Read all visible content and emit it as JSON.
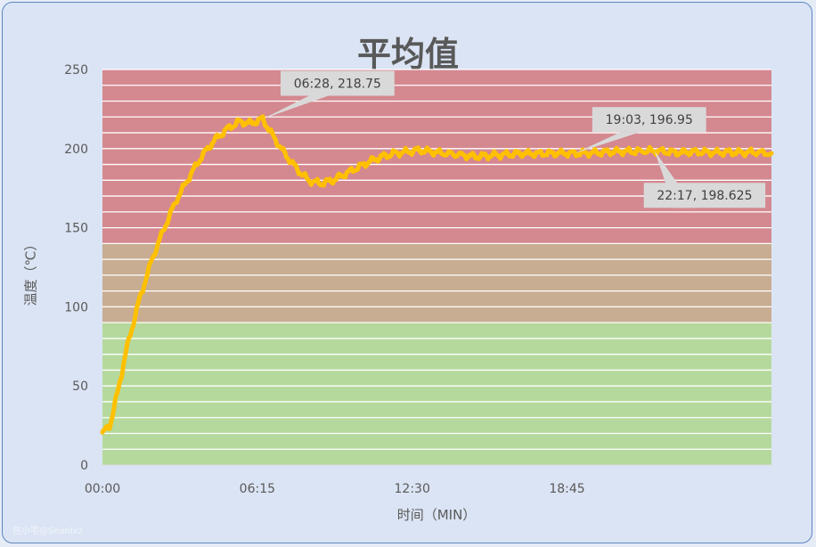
{
  "chart_data": {
    "type": "line",
    "title": "平均值",
    "xlabel": "时间（MIN）",
    "ylabel": "温度（℃）",
    "ylim": [
      0,
      250
    ],
    "xlim": [
      0,
      27
    ],
    "y_ticks": [
      "0",
      "50",
      "100",
      "150",
      "200",
      "250"
    ],
    "x_ticks": [
      {
        "label": "00:00",
        "value": 0
      },
      {
        "label": "06:15",
        "value": 6.25
      },
      {
        "label": "12:30",
        "value": 12.5
      },
      {
        "label": "18:45",
        "value": 18.75
      }
    ],
    "background_bands": [
      {
        "from": 0,
        "to": 90,
        "color": "#b5d99c"
      },
      {
        "from": 90,
        "to": 140,
        "color": "#c8ad92"
      },
      {
        "from": 140,
        "to": 250,
        "color": "#d4888f"
      }
    ],
    "grid": true,
    "series": [
      {
        "color": "#ffc000",
        "x": [
          0,
          0.3,
          0.6,
          1.0,
          1.5,
          2.0,
          2.5,
          3.0,
          3.5,
          4.0,
          4.5,
          5.0,
          5.5,
          6.0,
          6.47,
          6.8,
          7.3,
          7.8,
          8.3,
          8.8,
          9.3,
          9.8,
          10.3,
          10.8,
          11.3,
          11.8,
          12.3,
          12.8,
          13.3,
          13.8,
          14.5,
          15.0,
          15.5,
          16.0,
          16.5,
          17.0,
          17.5,
          18.0,
          18.5,
          19.05,
          19.5,
          20.0,
          20.5,
          21.0,
          21.5,
          22.28,
          22.8,
          23.3,
          23.8,
          24.3,
          24.8,
          25.3,
          25.8,
          26.3,
          27.0
        ],
        "y": [
          20,
          25,
          45,
          75,
          105,
          130,
          150,
          168,
          182,
          195,
          205,
          212,
          217,
          216,
          218.75,
          210,
          198,
          188,
          180,
          178,
          180,
          184,
          188,
          192,
          195,
          197,
          198,
          199,
          198,
          197,
          196,
          195,
          195.5,
          196,
          196.5,
          197,
          196.8,
          197,
          197.2,
          196.95,
          197.2,
          197.5,
          198,
          198.2,
          198.3,
          198.625,
          198,
          197.5,
          198,
          197.8,
          197.5,
          197.8,
          197.5,
          197.8,
          197
        ]
      }
    ],
    "annotations": [
      {
        "label": "06:28, 218.75",
        "x": 6.47,
        "y": 218.75
      },
      {
        "label": "19:03, 196.95",
        "x": 19.05,
        "y": 196.95
      },
      {
        "label": "22:17, 198.625",
        "x": 22.28,
        "y": 198.625
      }
    ]
  },
  "watermark": "住小宅@Seanlxz"
}
